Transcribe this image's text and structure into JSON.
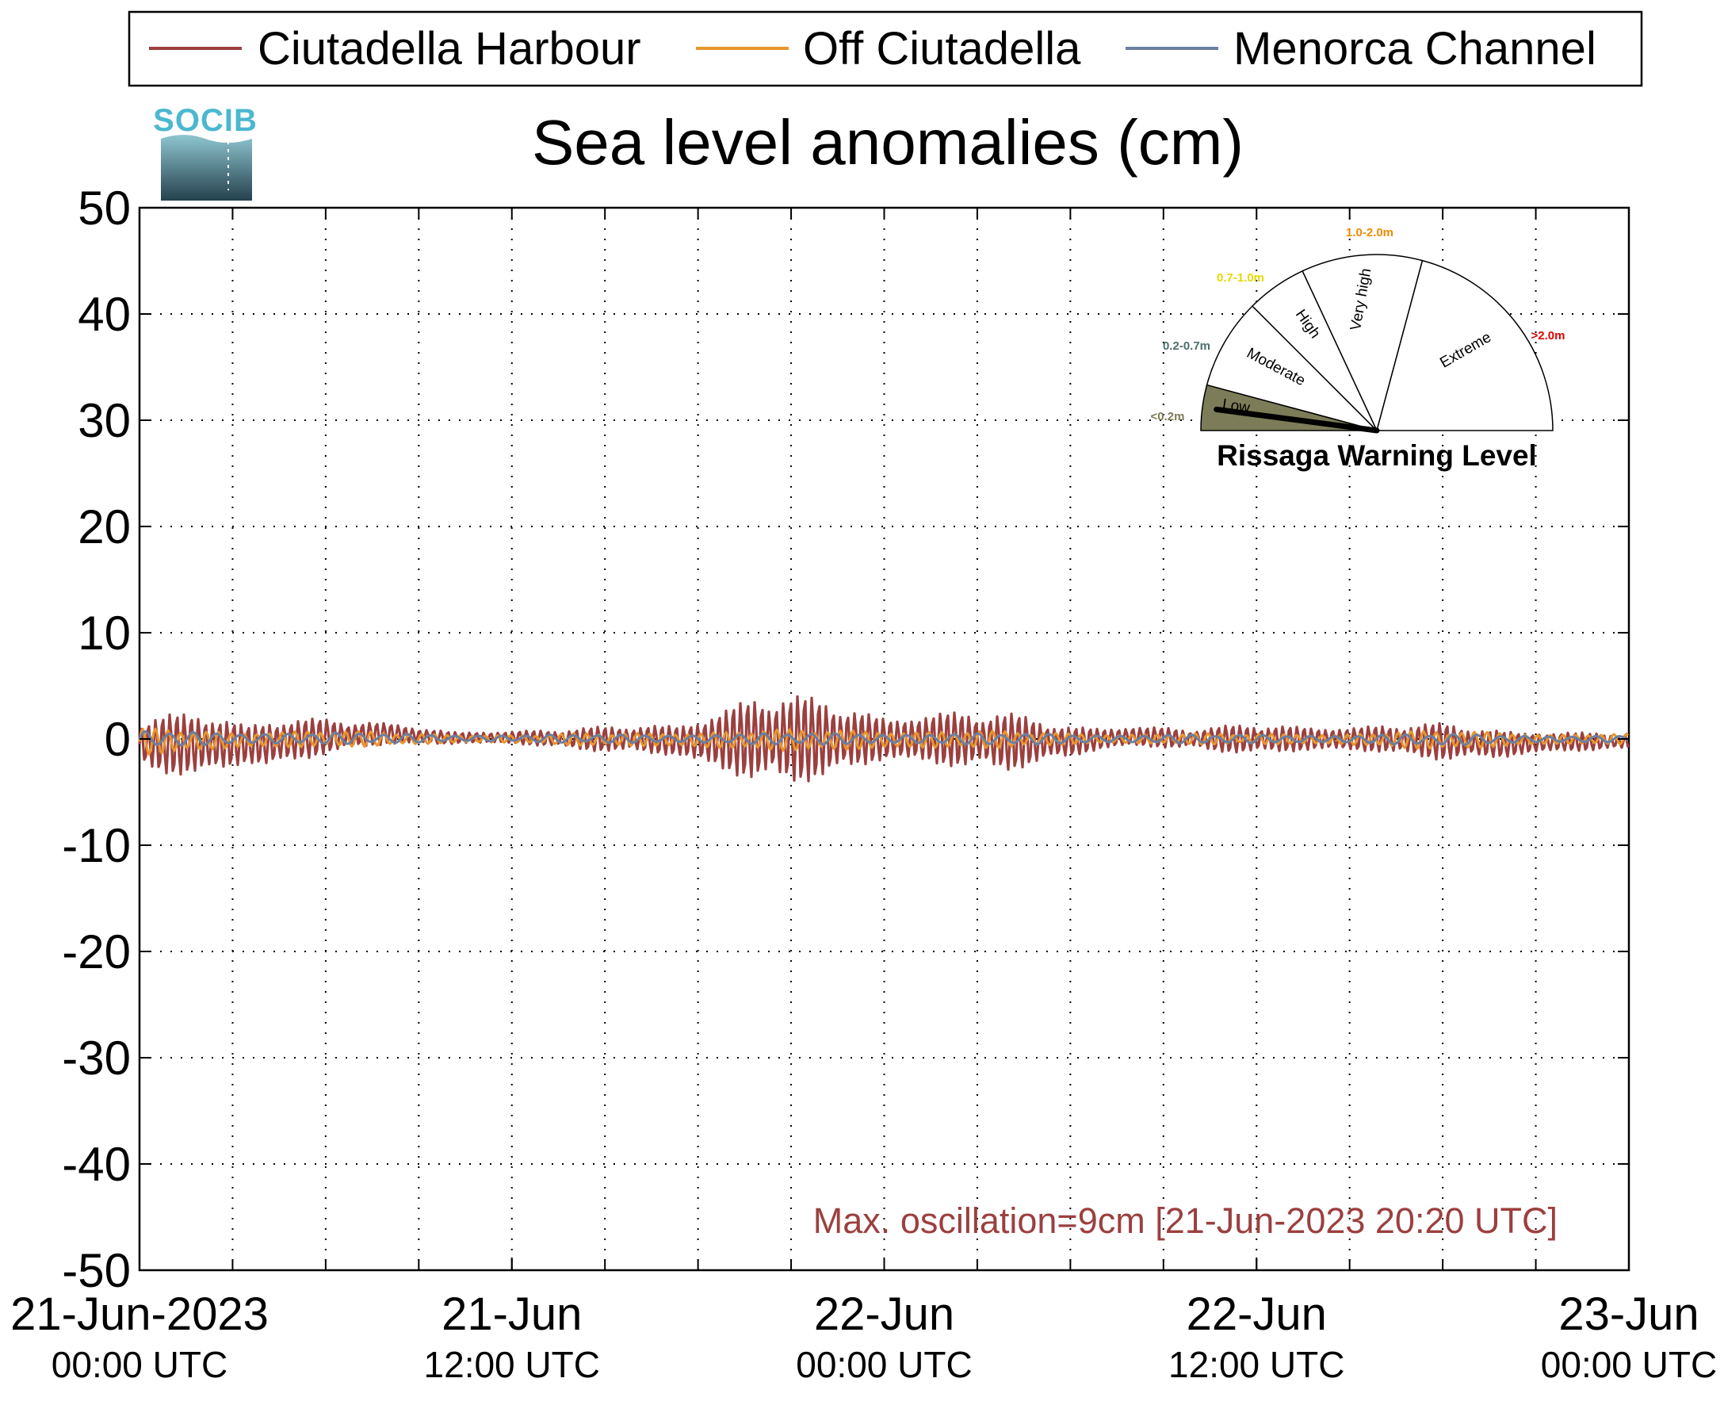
{
  "chart_data": {
    "type": "line",
    "title": "Sea level anomalies (cm)",
    "xlabel": "",
    "ylabel": "",
    "ylim": [
      -50,
      50
    ],
    "yticks": [
      50,
      40,
      30,
      20,
      10,
      0,
      -10,
      -20,
      -30,
      -40,
      -50
    ],
    "yticklabels": [
      "50",
      "40",
      "30",
      "20",
      "10",
      "0",
      "-10",
      "-20",
      "-30",
      "-40",
      "-50"
    ],
    "xlim": [
      "2023-06-21T00:00",
      "2023-06-23T00:00"
    ],
    "xticks": [
      {
        "t": "2023-06-21T00:00",
        "line1": "21-Jun-2023",
        "line2": "00:00 UTC"
      },
      {
        "t": "2023-06-21T12:00",
        "line1": "21-Jun",
        "line2": "12:00 UTC"
      },
      {
        "t": "2023-06-22T00:00",
        "line1": "22-Jun",
        "line2": "00:00 UTC"
      },
      {
        "t": "2023-06-22T12:00",
        "line1": "22-Jun",
        "line2": "12:00 UTC"
      },
      {
        "t": "2023-06-23T00:00",
        "line1": "23-Jun",
        "line2": "00:00 UTC"
      }
    ],
    "grid": true,
    "grid_style": "dotted",
    "legend_position": "top",
    "annotation": "Max. oscillation=9cm [21-Jun-2023 20:20 UTC]",
    "annotation_color": "#9c3f3f",
    "series": [
      {
        "name": "Ciutadella Harbour",
        "color": "#9c3f3f",
        "x": [
          "2023-06-21T00:00",
          "2023-06-21T02:00",
          "2023-06-21T04:00",
          "2023-06-21T06:00",
          "2023-06-21T08:00",
          "2023-06-21T10:00",
          "2023-06-21T12:00",
          "2023-06-21T14:00",
          "2023-06-21T16:00",
          "2023-06-21T18:00",
          "2023-06-21T20:00",
          "2023-06-21T22:00",
          "2023-06-22T00:00",
          "2023-06-22T02:00",
          "2023-06-22T04:00",
          "2023-06-22T06:00",
          "2023-06-22T08:00",
          "2023-06-22T10:00",
          "2023-06-22T12:00",
          "2023-06-22T14:00",
          "2023-06-22T16:00",
          "2023-06-22T18:00",
          "2023-06-22T20:00",
          "2023-06-22T22:00",
          "2023-06-23T00:00"
        ],
        "y_max": [
          2.0,
          3.0,
          2.5,
          2.0,
          1.5,
          1.0,
          0.8,
          1.0,
          1.5,
          2.5,
          4.5,
          4.0,
          3.0,
          3.0,
          2.5,
          1.5,
          1.5,
          1.0,
          1.5,
          1.5,
          1.5,
          1.5,
          1.0,
          1.0,
          0.5
        ],
        "y_min": [
          -3.0,
          -4.0,
          -3.5,
          -1.5,
          -0.5,
          -0.8,
          -0.5,
          -1.0,
          -1.5,
          -3.0,
          -4.5,
          -4.0,
          -3.0,
          -3.0,
          -3.0,
          -2.0,
          -1.0,
          -1.0,
          -1.5,
          -1.5,
          -1.5,
          -2.0,
          -2.0,
          -1.5,
          -1.0
        ]
      },
      {
        "name": "Off Ciutadella",
        "color": "#e8962e",
        "x": [
          "2023-06-21T00:00",
          "2023-06-21T06:00",
          "2023-06-21T12:00",
          "2023-06-21T18:00",
          "2023-06-22T00:00",
          "2023-06-22T06:00",
          "2023-06-22T12:00",
          "2023-06-22T18:00",
          "2023-06-23T00:00"
        ],
        "y_max": [
          1.0,
          0.8,
          0.4,
          0.8,
          1.0,
          0.6,
          0.5,
          0.8,
          0.5
        ],
        "y_min": [
          -1.5,
          -0.8,
          -0.4,
          -1.0,
          -1.2,
          -0.6,
          -0.5,
          -1.0,
          -0.5
        ]
      },
      {
        "name": "Menorca Channel",
        "color": "#6b7fa0",
        "x": [
          "2023-06-21T00:00",
          "2023-06-21T06:00",
          "2023-06-21T12:00",
          "2023-06-21T18:00",
          "2023-06-22T00:00",
          "2023-06-22T06:00",
          "2023-06-22T12:00",
          "2023-06-22T18:00",
          "2023-06-23T00:00"
        ],
        "y_max": [
          0.8,
          0.6,
          0.4,
          0.5,
          0.6,
          0.5,
          0.4,
          0.5,
          0.3
        ],
        "y_min": [
          -0.8,
          -0.5,
          -0.3,
          -0.5,
          -0.6,
          -0.5,
          -0.4,
          -0.6,
          -0.3
        ]
      }
    ]
  },
  "logo": {
    "text": "SOCIB",
    "color": "#4bb8cf"
  },
  "gauge": {
    "title": "Rissaga Warning Level",
    "current_level": "Low",
    "levels": [
      {
        "name": "Low",
        "range": "<0.2m",
        "color": "#7c7c58"
      },
      {
        "name": "Moderate",
        "range": "0.2-0.7m",
        "color": "#4e6e6e"
      },
      {
        "name": "High",
        "range": "0.7-1.0m",
        "color": "#e8d800"
      },
      {
        "name": "Very high",
        "range": "1.0-2.0m",
        "color": "#f08a00"
      },
      {
        "name": "Extreme",
        "range": ">2.0m",
        "color": "#e00000"
      }
    ]
  }
}
